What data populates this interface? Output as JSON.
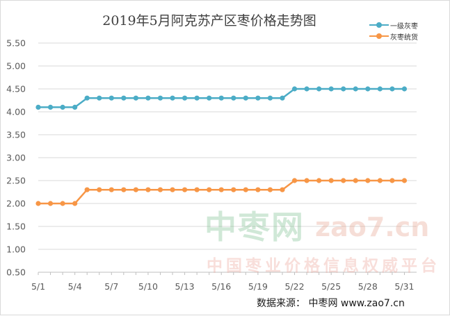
{
  "chart_data": {
    "type": "line",
    "title": "2019年5月阿克苏产区枣价格走势图",
    "x": [
      "5/1",
      "5/2",
      "5/3",
      "5/4",
      "5/5",
      "5/6",
      "5/7",
      "5/8",
      "5/9",
      "5/10",
      "5/11",
      "5/12",
      "5/13",
      "5/14",
      "5/15",
      "5/16",
      "5/17",
      "5/18",
      "5/19",
      "5/20",
      "5/21",
      "5/22",
      "5/23",
      "5/24",
      "5/25",
      "5/26",
      "5/27",
      "5/28",
      "5/29",
      "5/30",
      "5/31"
    ],
    "x_tick_labels": [
      "5/1",
      "5/4",
      "5/7",
      "5/10",
      "5/13",
      "5/16",
      "5/19",
      "5/22",
      "5/25",
      "5/28",
      "5/31"
    ],
    "y_tick_labels": [
      "0.50",
      "1.00",
      "1.50",
      "2.00",
      "2.50",
      "3.00",
      "3.50",
      "4.00",
      "4.50",
      "5.00",
      "5.50"
    ],
    "ylim": [
      0.5,
      5.5
    ],
    "y_step": 0.5,
    "grid": true,
    "legend_position": "top-right",
    "xlabel": "",
    "ylabel": "",
    "series": [
      {
        "name": "一级灰枣",
        "color": "#4bacc6",
        "values": [
          4.1,
          4.1,
          4.1,
          4.1,
          4.3,
          4.3,
          4.3,
          4.3,
          4.3,
          4.3,
          4.3,
          4.3,
          4.3,
          4.3,
          4.3,
          4.3,
          4.3,
          4.3,
          4.3,
          4.3,
          4.3,
          4.5,
          4.5,
          4.5,
          4.5,
          4.5,
          4.5,
          4.5,
          4.5,
          4.5,
          4.5
        ]
      },
      {
        "name": "灰枣统货",
        "color": "#f79646",
        "values": [
          2.0,
          2.0,
          2.0,
          2.0,
          2.3,
          2.3,
          2.3,
          2.3,
          2.3,
          2.3,
          2.3,
          2.3,
          2.3,
          2.3,
          2.3,
          2.3,
          2.3,
          2.3,
          2.3,
          2.3,
          2.3,
          2.5,
          2.5,
          2.5,
          2.5,
          2.5,
          2.5,
          2.5,
          2.5,
          2.5,
          2.5
        ]
      }
    ]
  },
  "watermark": {
    "logo_text": "中枣网",
    "domain": "zao7.cn",
    "slogan": "中国枣业价格信息权威平台"
  },
  "source": "数据来源：  中枣网 www.zao7.cn"
}
